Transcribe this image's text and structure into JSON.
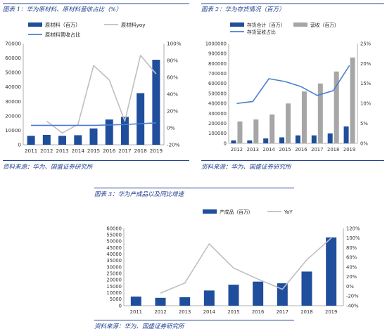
{
  "charts": [
    {
      "caption": "图表 1：华为原材料、原材料营收占比（%）",
      "source": "资料来源：华为、国盛证券研究所",
      "chart_data": {
        "type": "bar",
        "categories": [
          "2011",
          "2012",
          "2013",
          "2014",
          "2015",
          "2016",
          "2017",
          "2018",
          "2019"
        ],
        "left_ticks": [
          "0",
          "10000",
          "20000",
          "30000",
          "40000",
          "50000",
          "60000",
          "70000"
        ],
        "left_range": [
          0,
          70000
        ],
        "right_ticks": [
          "-20%",
          "0%",
          "20%",
          "40%",
          "60%",
          "80%",
          "100%"
        ],
        "right_range": [
          -20,
          100
        ],
        "legend": [
          "原材料（百万）",
          "原材料yoy",
          "原材料营收占比"
        ],
        "series": [
          {
            "name": "原材料（百万）",
            "kind": "bar",
            "axis": "left",
            "color": "#1f4e9c",
            "values": [
              6200,
              6800,
              6200,
              6600,
              11300,
              17500,
              19300,
              35700,
              58800
            ]
          },
          {
            "name": "原材料yoy",
            "kind": "line",
            "axis": "right",
            "color": "#bfbfbf",
            "values": [
              null,
              8,
              -6,
              4,
              74,
              57,
              8,
              86,
              64
            ]
          },
          {
            "name": "原材料营收占比",
            "kind": "line",
            "axis": "right",
            "color": "#4a7fd0",
            "values": [
              3,
              3,
              3,
              3,
              3,
              3.5,
              4,
              5,
              6
            ]
          }
        ]
      }
    },
    {
      "caption": "图表 2：华为存货情况（百万）",
      "source": "资料来源：华为、国盛证券研究所",
      "chart_data": {
        "type": "bar",
        "categories": [
          "2012",
          "2013",
          "2014",
          "2015",
          "2016",
          "2017",
          "2018",
          "2019"
        ],
        "left_ticks": [
          "0",
          "100000",
          "200000",
          "300000",
          "400000",
          "500000",
          "600000",
          "700000",
          "800000",
          "900000",
          "1000000"
        ],
        "left_range": [
          0,
          1000000
        ],
        "right_ticks": [
          "0%",
          "5%",
          "10%",
          "15%",
          "20%",
          "25%"
        ],
        "right_range": [
          0,
          25
        ],
        "legend": [
          "存货合计（百万）",
          "营收（百万）",
          "存货营收占比"
        ],
        "series": [
          {
            "name": "存货合计（百万）",
            "kind": "bar",
            "axis": "left",
            "color": "#1f4e9c",
            "values": [
              30000,
              30000,
              50000,
              60000,
              80000,
              80000,
              100000,
              170000
            ]
          },
          {
            "name": "营收（百万）",
            "kind": "bar",
            "axis": "left",
            "color": "#a6a6a6",
            "values": [
              220000,
              240000,
              290000,
              400000,
              520000,
              600000,
              720000,
              860000
            ]
          },
          {
            "name": "存货营收占比",
            "kind": "line",
            "axis": "right",
            "color": "#4a7fd0",
            "values": [
              10,
              10.5,
              16.2,
              15.5,
              14.2,
              12,
              13.2,
              19.5
            ]
          }
        ]
      }
    },
    {
      "caption": "图表 3：华为产成品以及同比增速",
      "source": "资料来源：华为、国盛证券研究所",
      "chart_data": {
        "type": "bar",
        "categories": [
          "2011",
          "2012",
          "2013",
          "2014",
          "2015",
          "2016",
          "2017",
          "2018",
          "2019"
        ],
        "left_ticks": [
          "0",
          "5000",
          "10000",
          "15000",
          "20000",
          "25000",
          "30000",
          "35000",
          "40000",
          "45000",
          "50000",
          "55000",
          "60000"
        ],
        "left_range": [
          0,
          60000
        ],
        "right_ticks": [
          "-40%",
          "-20%",
          "0%",
          "20%",
          "40%",
          "60%",
          "80%",
          "100%",
          "120%"
        ],
        "right_range": [
          -40,
          120
        ],
        "legend": [
          "产成品（百万）",
          "YoY"
        ],
        "series": [
          {
            "name": "产成品（百万）",
            "kind": "bar",
            "axis": "left",
            "color": "#1f4e9c",
            "values": [
              7100,
              6100,
              6600,
              11800,
              16300,
              18700,
              17400,
              26500,
              53000
            ]
          },
          {
            "name": "YoY",
            "kind": "line",
            "axis": "right",
            "color": "#bfbfbf",
            "values": [
              null,
              -14,
              7,
              88,
              38,
              15,
              -6,
              55,
              100
            ]
          }
        ]
      }
    }
  ]
}
